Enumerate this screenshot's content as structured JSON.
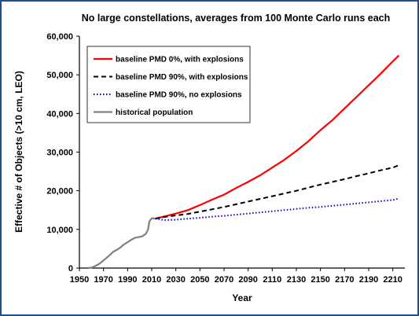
{
  "chart_data": {
    "type": "line",
    "title": "No large constellations, averages from 100 Monte Carlo runs each",
    "xlabel": "Year",
    "ylabel": "Effective # of Objects (>10 cm, LEO)",
    "xlim": [
      1950,
      2220
    ],
    "ylim": [
      0,
      60000
    ],
    "x_ticks": [
      1950,
      1970,
      1990,
      2010,
      2030,
      2050,
      2070,
      2090,
      2110,
      2130,
      2150,
      2170,
      2190,
      2210
    ],
    "x_tick_labels": [
      "1950",
      "1970",
      "1990",
      "2010",
      "2030",
      "2050",
      "2070",
      "2090",
      "2110",
      "2130",
      "2150",
      "2170",
      "2190",
      "2210"
    ],
    "y_ticks": [
      0,
      10000,
      20000,
      30000,
      40000,
      50000,
      60000
    ],
    "y_tick_labels": [
      "0",
      "10,000",
      "20,000",
      "30,000",
      "40,000",
      "50,000",
      "60,000"
    ],
    "grid": false,
    "legend": "top-left",
    "series": [
      {
        "name": "baseline PMD 0%, with explosions",
        "color": "#ff0000",
        "style": "solid",
        "x": [
          2013,
          2020,
          2030,
          2040,
          2050,
          2060,
          2070,
          2080,
          2090,
          2100,
          2110,
          2120,
          2130,
          2140,
          2150,
          2160,
          2170,
          2180,
          2190,
          2200,
          2210,
          2215
        ],
        "y": [
          12800,
          13300,
          14100,
          15000,
          16300,
          17700,
          19000,
          20700,
          22300,
          24000,
          26000,
          28000,
          30300,
          32800,
          35700,
          38300,
          41300,
          44300,
          47300,
          50300,
          53500,
          55000
        ]
      },
      {
        "name": "baseline PMD 90%, with explosions",
        "color": "#000000",
        "style": "dashed",
        "x": [
          2013,
          2020,
          2030,
          2040,
          2050,
          2060,
          2070,
          2080,
          2090,
          2100,
          2110,
          2120,
          2130,
          2140,
          2150,
          2160,
          2170,
          2180,
          2190,
          2200,
          2210,
          2215
        ],
        "y": [
          12800,
          13200,
          13600,
          14000,
          14600,
          15200,
          15800,
          16500,
          17200,
          17900,
          18600,
          19300,
          20000,
          20800,
          21600,
          22300,
          23000,
          23800,
          24500,
          25300,
          26000,
          26600
        ]
      },
      {
        "name": "baseline PMD 90%, no explosions",
        "color": "#0000ff",
        "style": "dotted",
        "x": [
          2013,
          2020,
          2030,
          2040,
          2050,
          2060,
          2070,
          2080,
          2090,
          2100,
          2110,
          2120,
          2130,
          2140,
          2150,
          2160,
          2170,
          2180,
          2190,
          2200,
          2210,
          2215
        ],
        "y": [
          12800,
          12400,
          12500,
          12800,
          13000,
          13300,
          13500,
          13800,
          14100,
          14400,
          14700,
          15000,
          15300,
          15600,
          15800,
          16100,
          16400,
          16700,
          17000,
          17300,
          17600,
          18000
        ]
      },
      {
        "name": "historical population",
        "color": "#808080",
        "style": "solid",
        "x": [
          1957,
          1960,
          1963,
          1966,
          1969,
          1972,
          1975,
          1978,
          1981,
          1984,
          1987,
          1990,
          1993,
          1996,
          1999,
          2002,
          2005,
          2007,
          2008,
          2010,
          2013
        ],
        "y": [
          0,
          100,
          500,
          1000,
          1700,
          2500,
          3300,
          4200,
          4700,
          5300,
          6100,
          6700,
          7300,
          7800,
          8000,
          8200,
          8800,
          10000,
          12000,
          12900,
          12800
        ]
      }
    ]
  }
}
